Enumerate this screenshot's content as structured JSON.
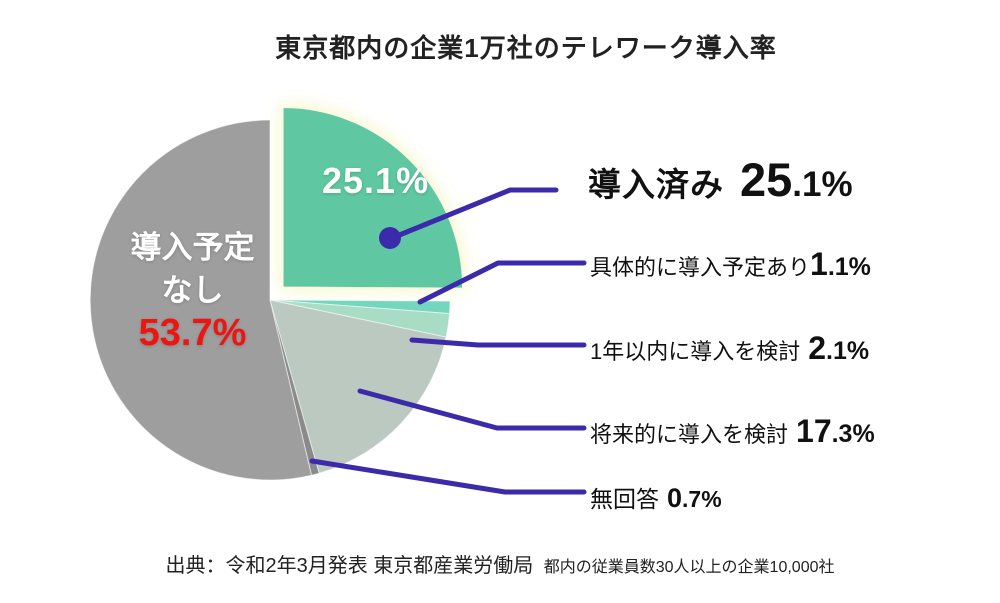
{
  "title": "東京都内の企業1万社のテレワーク導入率",
  "pie": {
    "introduced_pct_label": "25.1%",
    "no_plan_label_line1": "導入予定",
    "no_plan_label_line2": "なし",
    "no_plan_pct_label": "53.7%"
  },
  "legend": [
    {
      "label": "導入済み",
      "pct_big": "25",
      "pct_small": ".1%"
    },
    {
      "label": "具体的に導入予定あり",
      "pct_big": "1",
      "pct_small": ".1%"
    },
    {
      "label": "1年以内に導入を検討",
      "pct_big": "2",
      "pct_small": ".1%"
    },
    {
      "label": "将来的に導入を検討",
      "pct_big": "17",
      "pct_small": ".3%"
    },
    {
      "label": "無回答",
      "pct_big": "0",
      "pct_small": ".7%"
    }
  ],
  "source": {
    "main": "出典：令和2年3月発表 東京都産業労働局",
    "sub": "都内の従業員数30人以上の企業10,000社"
  },
  "colors": {
    "connector": "#3b2bab",
    "no_plan_pct": "#ee1511",
    "title_text": "#222222",
    "pie_label_text": "#ffffff"
  },
  "chart_data": {
    "type": "pie",
    "title": "東京都内の企業1万社のテレワーク導入率",
    "unit": "percent",
    "start_angle_deg": 0,
    "direction": "clockwise",
    "slices": [
      {
        "label": "導入済み",
        "value": 25.1,
        "color": "#5fc8a3",
        "explode": true,
        "glow": true
      },
      {
        "label": "具体的に導入予定あり",
        "value": 1.1,
        "color": "#74d7bd"
      },
      {
        "label": "1年以内に導入を検討",
        "value": 2.1,
        "color": "#a9dcc5"
      },
      {
        "label": "将来的に導入を検討",
        "value": 17.3,
        "color": "#bcc9c1"
      },
      {
        "label": "無回答",
        "value": 0.7,
        "color": "#8a8a8a"
      },
      {
        "label": "導入予定なし",
        "value": 53.7,
        "color": "#9e9e9e"
      }
    ],
    "legend_position": "right",
    "source": "出典：令和2年3月発表 東京都産業労働局 都内の従業員数30人以上の企業10,000社"
  }
}
